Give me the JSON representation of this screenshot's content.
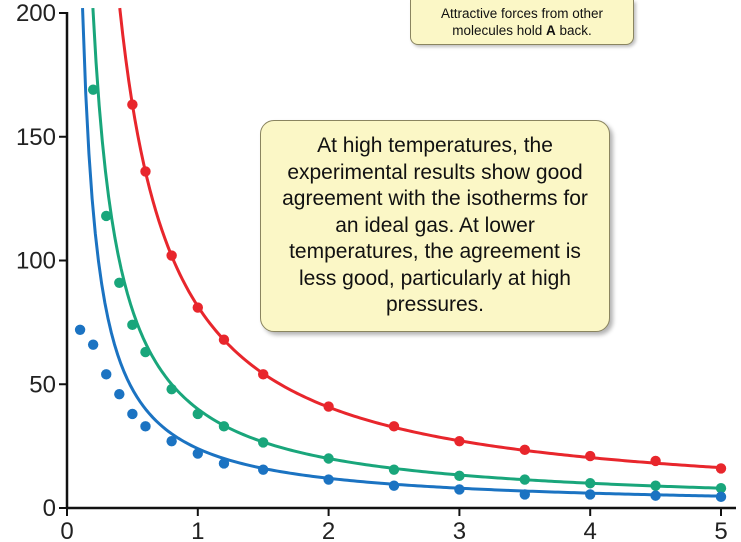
{
  "annotations": {
    "small_line1": "Attractive forces from other",
    "small_line2_pre": "molecules hold ",
    "small_line2_bold": "A",
    "small_line2_post": " back.",
    "big": "At high temperatures, the experimental results show good agreement with the isotherms for an ideal gas. At lower temperatures, the agreement is less good, particularly at high pressures."
  },
  "chart_data": {
    "type": "scatter",
    "title": "",
    "xlabel": "",
    "ylabel": "",
    "xlim": [
      0,
      5
    ],
    "ylim": [
      0,
      200
    ],
    "xticks": [
      "0",
      "1",
      "2",
      "3",
      "4",
      "5"
    ],
    "yticks": [
      "0",
      "50",
      "100",
      "150",
      "200"
    ],
    "grid": false,
    "legend": "none",
    "series": [
      {
        "color": "#e8262c",
        "curve_k": 81.5,
        "points": [
          [
            0.5,
            163
          ],
          [
            0.6,
            136
          ],
          [
            0.8,
            102
          ],
          [
            1.0,
            81
          ],
          [
            1.2,
            68
          ],
          [
            1.5,
            54
          ],
          [
            2.0,
            41
          ],
          [
            2.5,
            33
          ],
          [
            3.0,
            27
          ],
          [
            3.5,
            23.5
          ],
          [
            4.0,
            21
          ],
          [
            4.5,
            19
          ],
          [
            5.0,
            16
          ]
        ]
      },
      {
        "color": "#19a67b",
        "curve_k": 40,
        "points": [
          [
            0.2,
            169
          ],
          [
            0.3,
            118
          ],
          [
            0.4,
            91
          ],
          [
            0.5,
            74
          ],
          [
            0.6,
            63
          ],
          [
            0.8,
            48
          ],
          [
            1.0,
            38
          ],
          [
            1.2,
            33
          ],
          [
            1.5,
            26.5
          ],
          [
            2.0,
            20
          ],
          [
            2.5,
            15.5
          ],
          [
            3.0,
            13
          ],
          [
            3.5,
            11.5
          ],
          [
            4.0,
            10
          ],
          [
            4.5,
            9
          ],
          [
            5.0,
            8
          ]
        ]
      },
      {
        "color": "#1b73c2",
        "curve_k": 24,
        "points": [
          [
            0.1,
            72
          ],
          [
            0.2,
            66
          ],
          [
            0.3,
            54
          ],
          [
            0.4,
            46
          ],
          [
            0.5,
            38
          ],
          [
            0.6,
            33
          ],
          [
            0.8,
            27
          ],
          [
            1.0,
            22
          ],
          [
            1.2,
            18
          ],
          [
            1.5,
            15.5
          ],
          [
            2.0,
            11.5
          ],
          [
            2.5,
            9
          ],
          [
            3.0,
            7.5
          ],
          [
            3.5,
            5.5
          ],
          [
            4.0,
            5.5
          ],
          [
            4.5,
            5
          ],
          [
            5.0,
            4.5
          ]
        ]
      }
    ]
  }
}
